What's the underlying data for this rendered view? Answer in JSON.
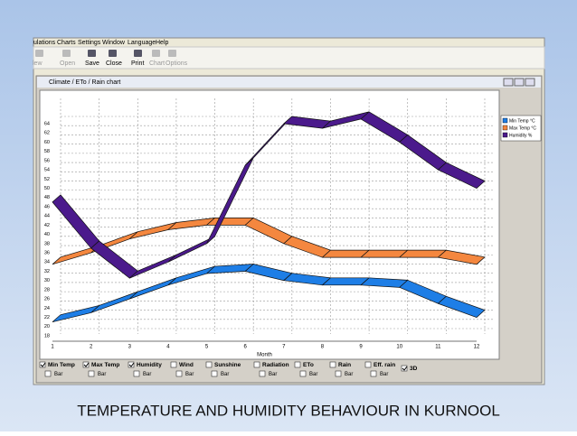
{
  "menu": [
    "ulations",
    "Charts",
    "Settings",
    "Window",
    "Language",
    "Help"
  ],
  "toolbar": [
    "lew",
    "Open",
    "Save",
    "Close",
    "Print",
    "Chart",
    "Options"
  ],
  "window_title": "Climate / ETo / Rain chart",
  "chart_data": {
    "type": "line",
    "x_label": "Month",
    "x": [
      1,
      2,
      3,
      4,
      5,
      6,
      7,
      8,
      9,
      10,
      11,
      12
    ],
    "xlim": [
      1,
      12
    ],
    "xticks": [
      1,
      2,
      3,
      4,
      5,
      6,
      7,
      8,
      9,
      10,
      11,
      12
    ],
    "ylim": [
      18,
      64
    ],
    "yticks": [
      18,
      20,
      22,
      24,
      26,
      28,
      30,
      32,
      34,
      36,
      38,
      40,
      42,
      44,
      46,
      48,
      50,
      52,
      54,
      56,
      58,
      60,
      62,
      64
    ],
    "grid": true,
    "legend": "upper right",
    "three_d": true,
    "series": [
      {
        "name": "Min Temp °C",
        "color": "#1e7ee6",
        "values": [
          21,
          23,
          26,
          29,
          31.5,
          32,
          30,
          29,
          29,
          28.5,
          25,
          22
        ]
      },
      {
        "name": "Max Temp °C",
        "color": "#f4873f",
        "values": [
          33.5,
          36,
          39,
          41,
          42,
          42,
          38,
          35,
          35,
          35,
          35,
          33.5
        ]
      },
      {
        "name": "Humidity %",
        "color": "#4b1a8c",
        "values": [
          47,
          37,
          30.5,
          34,
          38,
          55,
          64,
          63,
          65,
          60,
          54,
          50
        ]
      }
    ]
  },
  "controls": {
    "items": [
      {
        "label": "Min Temp",
        "checked": true
      },
      {
        "label": "Max Temp",
        "checked": true
      },
      {
        "label": "Humidity",
        "checked": true
      },
      {
        "label": "Wind",
        "checked": false
      },
      {
        "label": "Sunshine",
        "checked": false
      },
      {
        "label": "Radiation",
        "checked": false
      },
      {
        "label": "ETo",
        "checked": false
      },
      {
        "label": "Rain",
        "checked": false
      },
      {
        "label": "Eff. rain",
        "checked": false
      }
    ],
    "bar_label": "Bar",
    "three_d_label": "3D",
    "three_d_checked": true
  },
  "caption": "TEMPERATURE AND HUMIDITY BEHAVIOUR IN KURNOOL"
}
